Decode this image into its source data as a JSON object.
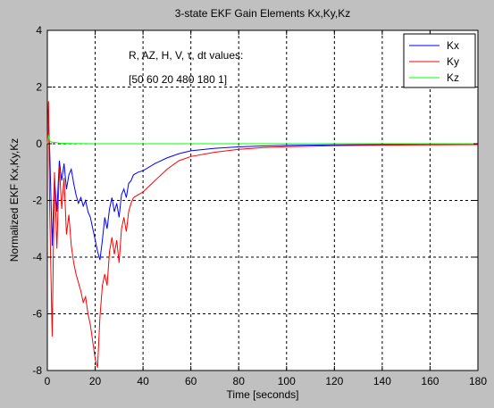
{
  "chart_data": {
    "type": "line",
    "title": "3-state EKF Gain Elements Kx,Ky,Kz",
    "xlabel": "Time   [seconds]",
    "ylabel": "Normalized EKF Kx,Ky,Kz",
    "xlim": [
      0,
      180
    ],
    "ylim": [
      -8,
      4
    ],
    "xticks": [
      0,
      20,
      40,
      60,
      80,
      100,
      120,
      140,
      160,
      180
    ],
    "yticks": [
      -8,
      -6,
      -4,
      -2,
      0,
      2,
      4
    ],
    "grid": true,
    "legend_position": "top-right",
    "annotations": [
      "R, AZ, H, V, τ, dt values:",
      "[50 60 20 480 180 1]"
    ],
    "series": [
      {
        "name": "Kx",
        "color": "#0000ff",
        "x": [
          0,
          0.5,
          1,
          2,
          3,
          4,
          5,
          6,
          7,
          8,
          9,
          10,
          11,
          12,
          13,
          14,
          15,
          16,
          17,
          18,
          19,
          20,
          21,
          22,
          23,
          24,
          25,
          26,
          27,
          28,
          29,
          30,
          31,
          32,
          33,
          34,
          35,
          36,
          37,
          38,
          40,
          45,
          50,
          55,
          60,
          70,
          80,
          90,
          100,
          120,
          140,
          160,
          180
        ],
        "y": [
          0,
          0.8,
          -0.3,
          -3.6,
          -1.2,
          -2.4,
          -0.6,
          -1.3,
          -0.7,
          -1.6,
          -1.1,
          -0.9,
          -1.4,
          -1.8,
          -2.1,
          -1.9,
          -2.2,
          -2.0,
          -2.4,
          -2.6,
          -3.0,
          -3.4,
          -3.8,
          -4.1,
          -3.4,
          -2.6,
          -3.0,
          -2.3,
          -1.9,
          -2.4,
          -2.1,
          -2.6,
          -1.8,
          -1.6,
          -1.9,
          -1.4,
          -1.3,
          -1.1,
          -1.05,
          -1.0,
          -0.95,
          -0.7,
          -0.5,
          -0.35,
          -0.25,
          -0.16,
          -0.11,
          -0.08,
          -0.06,
          -0.04,
          -0.03,
          -0.02,
          -0.02
        ]
      },
      {
        "name": "Ky",
        "color": "#ff0000",
        "x": [
          0,
          0.5,
          1,
          2,
          3,
          4,
          5,
          6,
          7,
          8,
          9,
          10,
          11,
          12,
          13,
          14,
          15,
          16,
          17,
          18,
          19,
          20,
          21,
          22,
          23,
          24,
          25,
          26,
          27,
          28,
          29,
          30,
          31,
          32,
          33,
          34,
          35,
          36,
          37,
          38,
          40,
          45,
          50,
          55,
          60,
          70,
          80,
          90,
          100,
          120,
          140,
          160,
          180
        ],
        "y": [
          0,
          1.5,
          -2.5,
          -6.8,
          -1.0,
          -3.7,
          -0.8,
          -2.3,
          -1.2,
          -3.2,
          -2.5,
          -3.6,
          -4.2,
          -4.6,
          -4.9,
          -5.2,
          -5.6,
          -5.4,
          -6.0,
          -6.4,
          -7.0,
          -7.6,
          -7.9,
          -6.1,
          -5.0,
          -4.6,
          -5.0,
          -3.8,
          -3.3,
          -3.9,
          -3.4,
          -4.2,
          -3.0,
          -2.6,
          -3.1,
          -2.4,
          -2.1,
          -1.9,
          -1.85,
          -1.8,
          -1.7,
          -1.3,
          -0.9,
          -0.6,
          -0.45,
          -0.3,
          -0.2,
          -0.14,
          -0.1,
          -0.07,
          -0.05,
          -0.04,
          -0.03
        ]
      },
      {
        "name": "Kz",
        "color": "#00ff00",
        "x": [
          0,
          0.5,
          1,
          2,
          3,
          5,
          10,
          20,
          40,
          60,
          80,
          100,
          120,
          140,
          160,
          180
        ],
        "y": [
          0,
          0.3,
          0.1,
          0.05,
          0.05,
          0.02,
          0.01,
          0.0,
          0.0,
          0.0,
          0.0,
          0.0,
          0.0,
          0.0,
          0.0,
          0.0
        ]
      }
    ]
  }
}
